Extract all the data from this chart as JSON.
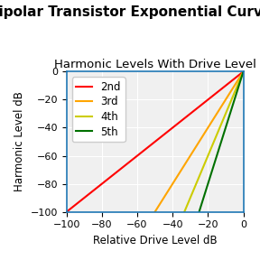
{
  "title": "Bipolar Transistor Exponential Curve",
  "subtitle": "Harmonic Levels With Drive Level",
  "xlabel": "Relative Drive Level dB",
  "ylabel": "Harmonic Level dB",
  "xlim": [
    -100,
    0
  ],
  "ylim": [
    -100,
    0
  ],
  "xticks": [
    -100,
    -80,
    -60,
    -40,
    -20,
    0
  ],
  "yticks": [
    -100,
    -80,
    -60,
    -40,
    -20,
    0
  ],
  "harmonics": [
    {
      "label": "2nd",
      "color": "#FF0000",
      "slope": 1,
      "intercept": 0
    },
    {
      "label": "3rd",
      "color": "#FFA500",
      "slope": 2,
      "intercept": 0
    },
    {
      "label": "4th",
      "color": "#CCCC00",
      "slope": 3,
      "intercept": 0
    },
    {
      "label": "5th",
      "color": "#007000",
      "slope": 4,
      "intercept": 0
    }
  ],
  "background_color": "#f0f0f0",
  "title_fontsize": 11,
  "subtitle_fontsize": 9.5,
  "label_fontsize": 8.5,
  "tick_fontsize": 8
}
